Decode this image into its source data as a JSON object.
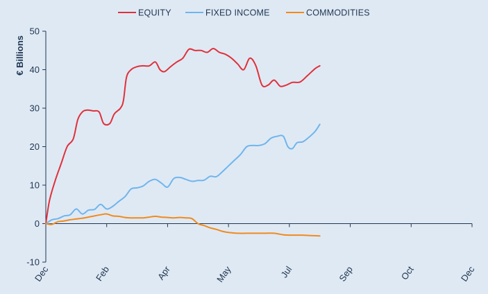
{
  "chart_data": {
    "type": "line",
    "title": "",
    "xlabel": "",
    "ylabel": "€ Billions",
    "ylim": [
      -10,
      50
    ],
    "y_ticks": [
      -10,
      0,
      10,
      20,
      30,
      40,
      50
    ],
    "x_domain": [
      0,
      14
    ],
    "x_ticks": [
      {
        "x": 0,
        "label": "Dec"
      },
      {
        "x": 2,
        "label": "Feb"
      },
      {
        "x": 4,
        "label": "Apr"
      },
      {
        "x": 6,
        "label": "May"
      },
      {
        "x": 8,
        "label": "Jul"
      },
      {
        "x": 10,
        "label": "Sep"
      },
      {
        "x": 12,
        "label": "Oct"
      },
      {
        "x": 14,
        "label": "Dec"
      }
    ],
    "grid": false,
    "legend_position": "top",
    "series": [
      {
        "name": "EQUITY",
        "color": "#e0303a",
        "points": [
          [
            0.0,
            0.0
          ],
          [
            0.12,
            6.0
          ],
          [
            0.3,
            11.0
          ],
          [
            0.5,
            15.5
          ],
          [
            0.7,
            20.0
          ],
          [
            0.9,
            22.0
          ],
          [
            1.05,
            27.0
          ],
          [
            1.2,
            29.0
          ],
          [
            1.35,
            29.5
          ],
          [
            1.55,
            29.3
          ],
          [
            1.75,
            29.0
          ],
          [
            1.9,
            26.0
          ],
          [
            2.1,
            26.0
          ],
          [
            2.25,
            28.5
          ],
          [
            2.45,
            30.0
          ],
          [
            2.55,
            32.0
          ],
          [
            2.65,
            38.0
          ],
          [
            2.8,
            40.0
          ],
          [
            3.0,
            40.8
          ],
          [
            3.2,
            41.0
          ],
          [
            3.4,
            41.0
          ],
          [
            3.6,
            42.0
          ],
          [
            3.75,
            40.0
          ],
          [
            3.9,
            39.5
          ],
          [
            4.1,
            40.8
          ],
          [
            4.3,
            42.0
          ],
          [
            4.5,
            43.0
          ],
          [
            4.7,
            45.3
          ],
          [
            4.9,
            45.0
          ],
          [
            5.1,
            45.0
          ],
          [
            5.3,
            44.5
          ],
          [
            5.5,
            45.5
          ],
          [
            5.7,
            44.5
          ],
          [
            5.9,
            44.0
          ],
          [
            6.1,
            43.0
          ],
          [
            6.3,
            41.5
          ],
          [
            6.5,
            40.0
          ],
          [
            6.7,
            43.0
          ],
          [
            6.9,
            41.0
          ],
          [
            7.1,
            36.0
          ],
          [
            7.3,
            36.0
          ],
          [
            7.5,
            37.3
          ],
          [
            7.7,
            35.7
          ],
          [
            7.9,
            36.0
          ],
          [
            8.1,
            36.7
          ],
          [
            8.35,
            36.8
          ],
          [
            8.6,
            38.5
          ],
          [
            8.85,
            40.3
          ],
          [
            9.0,
            41.0
          ]
        ]
      },
      {
        "name": "FIXED INCOME",
        "color": "#6fb5ec",
        "points": [
          [
            0.0,
            0.0
          ],
          [
            0.2,
            1.0
          ],
          [
            0.4,
            1.3
          ],
          [
            0.6,
            2.0
          ],
          [
            0.8,
            2.3
          ],
          [
            1.0,
            3.8
          ],
          [
            1.2,
            2.5
          ],
          [
            1.4,
            3.5
          ],
          [
            1.6,
            3.7
          ],
          [
            1.8,
            5.0
          ],
          [
            2.0,
            3.8
          ],
          [
            2.2,
            4.5
          ],
          [
            2.4,
            5.8
          ],
          [
            2.6,
            7.0
          ],
          [
            2.8,
            9.0
          ],
          [
            3.0,
            9.3
          ],
          [
            3.2,
            9.8
          ],
          [
            3.4,
            11.0
          ],
          [
            3.6,
            11.5
          ],
          [
            3.8,
            10.5
          ],
          [
            4.0,
            9.5
          ],
          [
            4.2,
            11.7
          ],
          [
            4.4,
            12.0
          ],
          [
            4.6,
            11.5
          ],
          [
            4.8,
            11.0
          ],
          [
            5.0,
            11.2
          ],
          [
            5.2,
            11.3
          ],
          [
            5.4,
            12.3
          ],
          [
            5.6,
            12.2
          ],
          [
            5.8,
            13.5
          ],
          [
            6.0,
            15.0
          ],
          [
            6.2,
            16.5
          ],
          [
            6.4,
            18.0
          ],
          [
            6.6,
            20.0
          ],
          [
            6.8,
            20.3
          ],
          [
            7.0,
            20.3
          ],
          [
            7.2,
            20.8
          ],
          [
            7.4,
            22.2
          ],
          [
            7.6,
            22.7
          ],
          [
            7.8,
            22.7
          ],
          [
            7.95,
            20.0
          ],
          [
            8.1,
            19.5
          ],
          [
            8.25,
            21.0
          ],
          [
            8.45,
            21.3
          ],
          [
            8.65,
            22.5
          ],
          [
            8.85,
            24.0
          ],
          [
            9.0,
            25.8
          ]
        ]
      },
      {
        "name": "COMMODITIES",
        "color": "#f08a1c",
        "points": [
          [
            0.0,
            0.0
          ],
          [
            0.2,
            -0.2
          ],
          [
            0.4,
            0.5
          ],
          [
            0.6,
            0.7
          ],
          [
            0.8,
            1.0
          ],
          [
            1.0,
            1.2
          ],
          [
            1.2,
            1.4
          ],
          [
            1.4,
            1.7
          ],
          [
            1.6,
            2.0
          ],
          [
            1.8,
            2.3
          ],
          [
            2.0,
            2.5
          ],
          [
            2.2,
            2.0
          ],
          [
            2.4,
            1.9
          ],
          [
            2.6,
            1.6
          ],
          [
            2.8,
            1.5
          ],
          [
            3.0,
            1.5
          ],
          [
            3.2,
            1.5
          ],
          [
            3.4,
            1.7
          ],
          [
            3.6,
            1.9
          ],
          [
            3.8,
            1.7
          ],
          [
            4.0,
            1.6
          ],
          [
            4.2,
            1.5
          ],
          [
            4.4,
            1.6
          ],
          [
            4.6,
            1.5
          ],
          [
            4.8,
            1.3
          ],
          [
            5.0,
            0.0
          ],
          [
            5.2,
            -0.5
          ],
          [
            5.4,
            -1.1
          ],
          [
            5.6,
            -1.5
          ],
          [
            5.8,
            -2.0
          ],
          [
            6.0,
            -2.3
          ],
          [
            6.3,
            -2.5
          ],
          [
            6.6,
            -2.5
          ],
          [
            6.9,
            -2.5
          ],
          [
            7.2,
            -2.5
          ],
          [
            7.5,
            -2.5
          ],
          [
            7.8,
            -2.9
          ],
          [
            8.1,
            -3.0
          ],
          [
            8.4,
            -3.0
          ],
          [
            8.7,
            -3.1
          ],
          [
            9.0,
            -3.2
          ]
        ]
      }
    ]
  }
}
